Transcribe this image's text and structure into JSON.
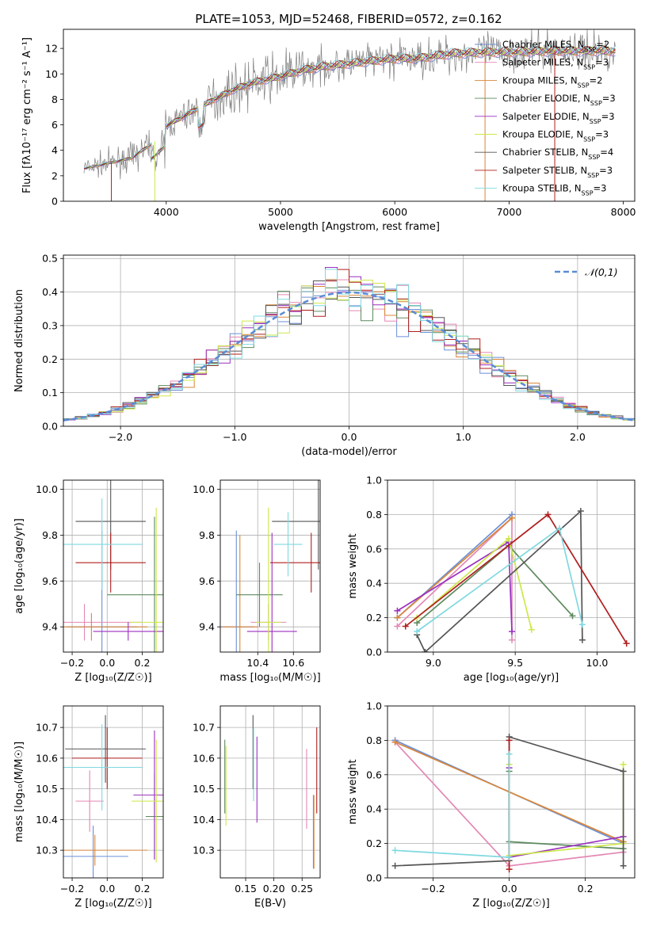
{
  "figure": {
    "title": "PLATE=1053, MJD=52468, FIBERID=0572, z=0.162"
  },
  "colors": {
    "Chabrier MILES": "#6b8fd6",
    "Salpeter MILES": "#e388b4",
    "Kroupa MILES": "#d9873a",
    "Chabrier ELODIE": "#5e8a5e",
    "Salpeter ELODIE": "#9b2fc0",
    "Kroupa ELODIE": "#cde84a",
    "Chabrier STELIB": "#555555",
    "Salpeter STELIB": "#b01e1e",
    "Kroupa STELIB": "#7fd9e0",
    "data": "#808080",
    "normal": "#5b8bd6"
  },
  "chart_data": [
    {
      "type": "line",
      "xlabel": "wavelength [Angstrom, rest frame]",
      "ylabel": "Flux [fλ10⁻¹⁷ erg cm⁻² s⁻¹ A⁻¹]",
      "xlim": [
        3100,
        8100
      ],
      "ylim": [
        0,
        13.5
      ],
      "xticks": [
        4000,
        5000,
        6000,
        7000,
        8000
      ],
      "yticks": [
        0,
        2,
        4,
        6,
        8,
        10,
        12
      ],
      "grid": false,
      "legend": "top-right",
      "legend_entries": [
        "Chabrier MILES, N_SSP=2",
        "Salpeter MILES, N_SSP=3",
        "Kroupa MILES, N_SSP=2",
        "Chabrier ELODIE, N_SSP=3",
        "Salpeter ELODIE, N_SSP=3",
        "Kroupa ELODIE, N_SSP=3",
        "Chabrier STELIB, N_SSP=4",
        "Salpeter STELIB, N_SSP=3",
        "Kroupa STELIB, N_SSP=3"
      ],
      "continuum": {
        "x": [
          3300,
          3500,
          3700,
          3900,
          4000,
          4200,
          4400,
          4600,
          4800,
          5000,
          5200,
          5400,
          5600,
          5800,
          6000,
          6200,
          6500,
          6800,
          7000,
          7400,
          7900
        ],
        "y": [
          2.6,
          3.0,
          3.4,
          4.7,
          5.9,
          6.9,
          7.9,
          8.8,
          9.4,
          9.8,
          10.3,
          10.6,
          10.8,
          11.0,
          11.2,
          11.2,
          11.6,
          11.7,
          11.7,
          11.8,
          11.8
        ]
      }
    },
    {
      "type": "line",
      "xlabel": "(data-model)/error",
      "ylabel": "Normed distribution",
      "xlim": [
        -2.5,
        2.5
      ],
      "ylim": [
        0,
        0.51
      ],
      "xticks": [
        -2,
        -1,
        0,
        1,
        2
      ],
      "yticks": [
        0.0,
        0.1,
        0.2,
        0.3,
        0.4,
        0.5
      ],
      "grid": true,
      "legend": "top-right",
      "legend_entries": [
        "𝒩(0,1)"
      ],
      "series": [
        {
          "name": "𝒩(0,1)",
          "mean": 0,
          "sigma": 1
        }
      ]
    },
    {
      "type": "scatter",
      "xlabel": "Z [log₁₀(Z/Z☉)]",
      "ylabel": "age  [log₁₀(age/yr)]",
      "xlim": [
        -0.25,
        0.32
      ],
      "ylim": [
        9.29,
        10.04
      ],
      "xticks": [
        -0.2,
        0.0,
        0.2
      ],
      "yticks": [
        9.4,
        9.6,
        9.8,
        10.0
      ],
      "grid": true,
      "points": [
        {
          "model": "Chabrier MILES",
          "x": -0.03,
          "y": 9.4,
          "xerr": 0.2,
          "yerr": 0.42
        },
        {
          "model": "Salpeter MILES",
          "x": -0.13,
          "y": 9.42,
          "xerr": 0.33,
          "yerr": 0.08
        },
        {
          "model": "Kroupa MILES",
          "x": -0.09,
          "y": 9.4,
          "xerr": 0.32,
          "yerr": 0.06
        },
        {
          "model": "Chabrier ELODIE",
          "x": 0.27,
          "y": 9.54,
          "xerr": 0.27,
          "yerr": 0.34
        },
        {
          "model": "Salpeter ELODIE",
          "x": 0.12,
          "y": 9.38,
          "xerr": 0.2,
          "yerr": 0.04
        },
        {
          "model": "Kroupa ELODIE",
          "x": 0.28,
          "y": 9.42,
          "xerr": 0.15,
          "yerr": 0.5
        },
        {
          "model": "Chabrier STELIB",
          "x": 0.02,
          "y": 9.86,
          "xerr": 0.2,
          "yerr": 0.21
        },
        {
          "model": "Salpeter STELIB",
          "x": 0.02,
          "y": 9.68,
          "xerr": 0.2,
          "yerr": 0.13
        },
        {
          "model": "Kroupa STELIB",
          "x": -0.03,
          "y": 9.76,
          "xerr": 0.23,
          "yerr": 0.2
        }
      ]
    },
    {
      "type": "scatter",
      "xlabel": "mass [log₁₀(M/M☉)]",
      "ylabel": "",
      "xlim": [
        10.19,
        10.75
      ],
      "ylim": [
        9.29,
        10.04
      ],
      "xticks": [
        10.4,
        10.6
      ],
      "yticks": [
        9.4,
        9.6,
        9.8,
        10.0
      ],
      "grid": true,
      "points": [
        {
          "model": "Chabrier MILES",
          "x": 10.28,
          "y": 9.4,
          "xerr": 0.1,
          "yerr": 0.42
        },
        {
          "model": "Salpeter MILES",
          "x": 10.46,
          "y": 9.42,
          "xerr": 0.1,
          "yerr": 0.08
        },
        {
          "model": "Kroupa MILES",
          "x": 10.3,
          "y": 9.4,
          "xerr": 0.1,
          "yerr": 0.4
        },
        {
          "model": "Chabrier ELODIE",
          "x": 10.41,
          "y": 9.54,
          "xerr": 0.13,
          "yerr": 0.14
        },
        {
          "model": "Salpeter ELODIE",
          "x": 10.48,
          "y": 9.38,
          "xerr": 0.14,
          "yerr": 0.43
        },
        {
          "model": "Kroupa ELODIE",
          "x": 10.46,
          "y": 9.42,
          "xerr": 0.07,
          "yerr": 0.5
        },
        {
          "model": "Chabrier STELIB",
          "x": 10.74,
          "y": 9.86,
          "xerr": 0.26,
          "yerr": 0.21
        },
        {
          "model": "Salpeter STELIB",
          "x": 10.7,
          "y": 9.68,
          "xerr": 0.23,
          "yerr": 0.13
        },
        {
          "model": "Kroupa STELIB",
          "x": 10.57,
          "y": 9.76,
          "xerr": 0.08,
          "yerr": 0.14
        }
      ]
    },
    {
      "type": "line",
      "xlabel": "age  [log₁₀(age/yr)]",
      "ylabel": "mass weight",
      "xlim": [
        8.72,
        10.23
      ],
      "ylim": [
        0,
        1.0
      ],
      "xticks": [
        9.0,
        9.5,
        10.0
      ],
      "yticks": [
        0.0,
        0.2,
        0.4,
        0.6,
        0.8,
        1.0
      ],
      "grid": true,
      "series": [
        {
          "name": "Chabrier MILES",
          "x": [
            8.78,
            9.48
          ],
          "y": [
            0.2,
            0.8
          ]
        },
        {
          "name": "Salpeter MILES",
          "x": [
            8.78,
            9.48,
            9.48
          ],
          "y": [
            0.15,
            0.78,
            0.07
          ]
        },
        {
          "name": "Kroupa MILES",
          "x": [
            8.78,
            9.48
          ],
          "y": [
            0.2,
            0.78
          ]
        },
        {
          "name": "Chabrier ELODIE",
          "x": [
            8.9,
            9.46,
            9.85
          ],
          "y": [
            0.17,
            0.62,
            0.21
          ]
        },
        {
          "name": "Salpeter ELODIE",
          "x": [
            8.78,
            9.46,
            9.48
          ],
          "y": [
            0.24,
            0.64,
            0.12
          ]
        },
        {
          "name": "Kroupa ELODIE",
          "x": [
            8.9,
            9.46,
            9.6
          ],
          "y": [
            0.2,
            0.66,
            0.13
          ]
        },
        {
          "name": "Chabrier STELIB",
          "x": [
            8.9,
            8.95,
            9.9,
            9.91
          ],
          "y": [
            0.1,
            0.0,
            0.82,
            0.07
          ]
        },
        {
          "name": "Salpeter STELIB",
          "x": [
            8.83,
            9.7,
            10.18
          ],
          "y": [
            0.15,
            0.8,
            0.05
          ]
        },
        {
          "name": "Kroupa STELIB",
          "x": [
            8.9,
            9.77,
            9.91
          ],
          "y": [
            0.12,
            0.72,
            0.16
          ]
        }
      ]
    },
    {
      "type": "scatter",
      "xlabel": "Z [log₁₀(Z/Z☉)]",
      "ylabel": "mass [log₁₀(M/M☉)]",
      "xlim": [
        -0.25,
        0.32
      ],
      "ylim": [
        10.21,
        10.77
      ],
      "xticks": [
        -0.2,
        0.0,
        0.2
      ],
      "yticks": [
        10.3,
        10.4,
        10.5,
        10.6,
        10.7
      ],
      "grid": true,
      "points": [
        {
          "model": "Chabrier MILES",
          "x": -0.08,
          "y": 10.28,
          "xerr": 0.2,
          "yerr": 0.1
        },
        {
          "model": "Salpeter MILES",
          "x": -0.1,
          "y": 10.46,
          "xerr": 0.08,
          "yerr": 0.1
        },
        {
          "model": "Kroupa MILES",
          "x": -0.07,
          "y": 10.3,
          "xerr": 0.3,
          "yerr": 0.05
        },
        {
          "model": "Chabrier ELODIE",
          "x": 0.27,
          "y": 10.41,
          "xerr": 0.05,
          "yerr": 0.14
        },
        {
          "model": "Salpeter ELODIE",
          "x": 0.27,
          "y": 10.48,
          "xerr": 0.12,
          "yerr": 0.21
        },
        {
          "model": "Kroupa ELODIE",
          "x": 0.28,
          "y": 10.46,
          "xerr": 0.14,
          "yerr": 0.2
        },
        {
          "model": "Chabrier STELIB",
          "x": -0.01,
          "y": 10.63,
          "xerr": 0.23,
          "yerr": 0.11
        },
        {
          "model": "Salpeter STELIB",
          "x": 0.0,
          "y": 10.6,
          "xerr": 0.2,
          "yerr": 0.1
        },
        {
          "model": "Kroupa STELIB",
          "x": -0.03,
          "y": 10.57,
          "xerr": 0.23,
          "yerr": 0.14
        }
      ]
    },
    {
      "type": "scatter",
      "xlabel": "E(B-V)",
      "ylabel": "",
      "xlim": [
        0.105,
        0.282
      ],
      "ylim": [
        10.21,
        10.77
      ],
      "xticks": [
        0.15,
        0.2,
        0.25
      ],
      "yticks": [
        10.3,
        10.4,
        10.5,
        10.6,
        10.7
      ],
      "grid": true,
      "points": [
        {
          "model": "Chabrier MILES",
          "x": 0.27,
          "y": 10.36,
          "xerr": 0,
          "yerr": 0.12
        },
        {
          "model": "Salpeter MILES",
          "x": 0.258,
          "y": 10.5,
          "xerr": 0,
          "yerr": 0.13
        },
        {
          "model": "Kroupa MILES",
          "x": 0.271,
          "y": 10.36,
          "xerr": 0,
          "yerr": 0.12
        },
        {
          "model": "Chabrier ELODIE",
          "x": 0.113,
          "y": 10.54,
          "xerr": 0,
          "yerr": 0.12
        },
        {
          "model": "Salpeter ELODIE",
          "x": 0.17,
          "y": 10.53,
          "xerr": 0,
          "yerr": 0.14
        },
        {
          "model": "Kroupa ELODIE",
          "x": 0.115,
          "y": 10.51,
          "xerr": 0,
          "yerr": 0.13
        },
        {
          "model": "Chabrier STELIB",
          "x": 0.163,
          "y": 10.62,
          "xerr": 0,
          "yerr": 0.12
        },
        {
          "model": "Salpeter STELIB",
          "x": 0.276,
          "y": 10.56,
          "xerr": 0,
          "yerr": 0.14
        },
        {
          "model": "Kroupa STELIB",
          "x": 0.164,
          "y": 10.58,
          "xerr": 0,
          "yerr": 0.12
        }
      ]
    },
    {
      "type": "line",
      "xlabel": "Z [log₁₀(Z/Z☉)]",
      "ylabel": "mass weight",
      "xlim": [
        -0.32,
        0.33
      ],
      "ylim": [
        0,
        1.0
      ],
      "xticks": [
        -0.2,
        0.0,
        0.2
      ],
      "yticks": [
        0.0,
        0.2,
        0.4,
        0.6,
        0.8,
        1.0
      ],
      "grid": true,
      "series": [
        {
          "name": "Chabrier MILES",
          "x": [
            -0.3,
            0.3
          ],
          "y": [
            0.8,
            0.2
          ]
        },
        {
          "name": "Salpeter MILES",
          "x": [
            -0.3,
            0.0,
            0.3
          ],
          "y": [
            0.79,
            0.07,
            0.15
          ]
        },
        {
          "name": "Kroupa MILES",
          "x": [
            -0.3,
            0.3
          ],
          "y": [
            0.79,
            0.21
          ]
        },
        {
          "name": "Chabrier ELODIE",
          "x": [
            0.0,
            0.0,
            0.3
          ],
          "y": [
            0.62,
            0.21,
            0.17
          ]
        },
        {
          "name": "Salpeter ELODIE",
          "x": [
            0.0,
            0.0,
            0.3
          ],
          "y": [
            0.64,
            0.12,
            0.24
          ]
        },
        {
          "name": "Kroupa ELODIE",
          "x": [
            0.0,
            0.0,
            0.3,
            0.3
          ],
          "y": [
            0.66,
            0.13,
            0.2,
            0.66
          ]
        },
        {
          "name": "Chabrier STELIB",
          "x": [
            -0.3,
            0.0,
            0.0,
            0.3,
            0.3
          ],
          "y": [
            0.07,
            0.1,
            0.82,
            0.62,
            0.07
          ]
        },
        {
          "name": "Salpeter STELIB",
          "x": [
            0.0,
            0.0
          ],
          "y": [
            0.8,
            0.05
          ]
        },
        {
          "name": "Kroupa STELIB",
          "x": [
            -0.3,
            0.0,
            0.0
          ],
          "y": [
            0.16,
            0.12,
            0.72
          ]
        }
      ]
    }
  ]
}
